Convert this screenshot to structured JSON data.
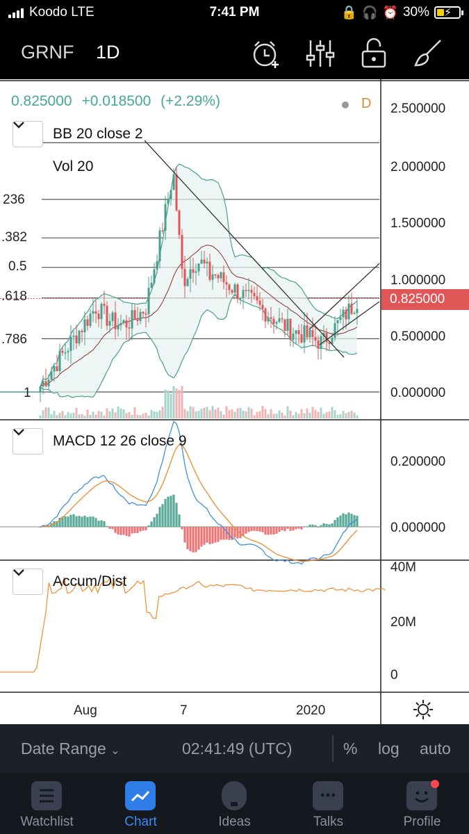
{
  "status_bar": {
    "carrier": "Koodo LTE",
    "time": "7:41 PM",
    "battery": "30%",
    "icons": [
      "signal-icon",
      "lock-rotation-icon",
      "headphones-icon",
      "alarm-icon",
      "battery-icon"
    ]
  },
  "header": {
    "symbol": "GRNF",
    "interval": "1D",
    "icons": [
      "alert-add-icon",
      "indicators-icon",
      "unlock-icon",
      "draw-brush-icon"
    ]
  },
  "legend": {
    "price": "0.825000",
    "change": "+0.018500",
    "change_pct": "(+2.29%)",
    "interval_badge": "D",
    "bb": "BB 20 close 2",
    "vol": "Vol 20",
    "macd": "MACD 12 26 close 9",
    "accum": "Accum/Dist"
  },
  "price_axis": [
    "2.500000",
    "2.000000",
    "1.500000",
    "1.000000",
    "0.500000",
    "0.000000"
  ],
  "current_price_tag": "0.825000",
  "fib_labels": [
    "236",
    ".382",
    "0.5",
    ".618",
    ".786",
    "1"
  ],
  "macd_axis": [
    "0.200000",
    "0.000000"
  ],
  "ad_axis": [
    "40M",
    "20M",
    "0"
  ],
  "time_axis": [
    "Aug",
    "7",
    "2020"
  ],
  "colors": {
    "up": "#4a9e8e",
    "down": "#e05656",
    "macd_line": "#3d8fe0",
    "signal_line": "#f08a2c",
    "accent": "#2f7ee8"
  },
  "toolbar": {
    "date_range": "Date Range",
    "clock": "02:41:49 (UTC)",
    "percent": "%",
    "log": "log",
    "auto": "auto"
  },
  "tabs": [
    {
      "label": "Watchlist",
      "icon": "watchlist-icon",
      "active": false
    },
    {
      "label": "Chart",
      "icon": "chart-icon",
      "active": true
    },
    {
      "label": "Ideas",
      "icon": "ideas-icon",
      "active": false
    },
    {
      "label": "Talks",
      "icon": "talks-icon",
      "active": false
    },
    {
      "label": "Profile",
      "icon": "profile-icon",
      "active": false
    }
  ]
}
